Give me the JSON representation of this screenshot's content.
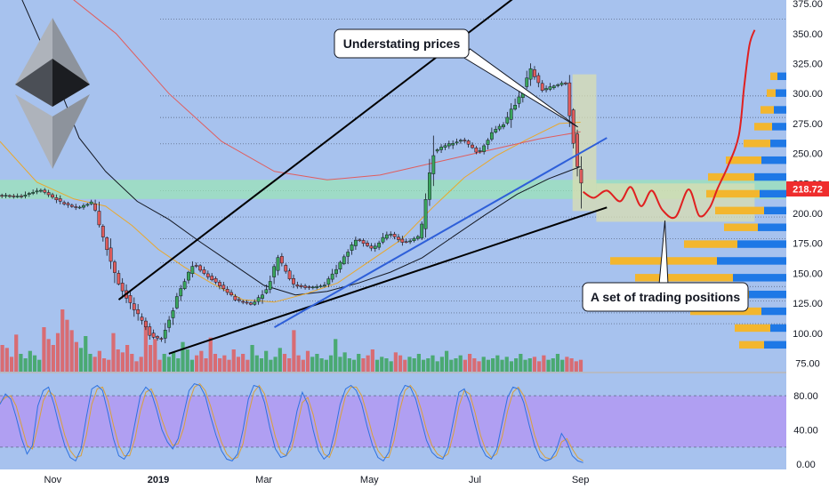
{
  "chart_data": {
    "type": "candlestick",
    "instrument_logo": "ethereum-icon",
    "current_price": "218.72",
    "price_axis": {
      "ylim": [
        68,
        378
      ],
      "ticks": [
        "375.00",
        "350.00",
        "325.00",
        "300.00",
        "275.00",
        "250.00",
        "225.00",
        "200.00",
        "175.00",
        "150.00",
        "125.00",
        "100.00",
        "75.00"
      ]
    },
    "oscillator_axis": {
      "ylim": [
        -6,
        106
      ],
      "ticks": [
        "80.00",
        "40.00",
        "0.00"
      ],
      "band": [
        20,
        80
      ]
    },
    "time_axis": {
      "ticks": [
        {
          "label": "Nov",
          "month": 1
        },
        {
          "label": "2019",
          "month": 3
        },
        {
          "label": "Mar",
          "month": 5
        },
        {
          "label": "May",
          "month": 7
        },
        {
          "label": "Jul",
          "month": 9
        },
        {
          "label": "Sep",
          "month": 11
        }
      ]
    },
    "price_path": [
      [
        0.0,
        215
      ],
      [
        0.4,
        214
      ],
      [
        0.8,
        220
      ],
      [
        1.2,
        209
      ],
      [
        1.5,
        204
      ],
      [
        1.8,
        210
      ],
      [
        2.0,
        178
      ],
      [
        2.3,
        140
      ],
      [
        2.6,
        118
      ],
      [
        2.9,
        98
      ],
      [
        3.1,
        95
      ],
      [
        3.4,
        132
      ],
      [
        3.7,
        158
      ],
      [
        3.9,
        150
      ],
      [
        4.2,
        140
      ],
      [
        4.5,
        128
      ],
      [
        4.8,
        124
      ],
      [
        5.1,
        137
      ],
      [
        5.3,
        165
      ],
      [
        5.6,
        140
      ],
      [
        5.9,
        138
      ],
      [
        6.2,
        140
      ],
      [
        6.5,
        160
      ],
      [
        6.8,
        180
      ],
      [
        7.1,
        170
      ],
      [
        7.4,
        184
      ],
      [
        7.7,
        175
      ],
      [
        8.0,
        182
      ],
      [
        8.25,
        252
      ],
      [
        8.5,
        257
      ],
      [
        8.8,
        262
      ],
      [
        9.1,
        250
      ],
      [
        9.4,
        270
      ],
      [
        9.6,
        275
      ],
      [
        9.9,
        300
      ],
      [
        10.1,
        320
      ],
      [
        10.3,
        303
      ],
      [
        10.6,
        307
      ],
      [
        10.75,
        310
      ],
      [
        10.95,
        247
      ],
      [
        11.05,
        219
      ]
    ],
    "volume_bars": [
      18,
      16,
      10,
      25,
      12,
      9,
      14,
      11,
      8,
      30,
      22,
      18,
      26,
      42,
      35,
      28,
      20,
      16,
      24,
      12,
      10,
      14,
      9,
      8,
      26,
      15,
      13,
      18,
      12,
      7,
      10,
      34,
      18,
      22,
      8,
      12,
      10,
      13,
      9,
      20,
      15,
      8,
      11,
      14,
      9,
      23,
      12,
      9,
      11,
      8,
      15,
      10,
      12,
      8,
      18,
      11,
      9,
      14,
      8,
      10,
      16,
      12,
      9,
      28,
      11,
      8,
      14,
      10,
      12,
      9,
      8,
      11,
      22,
      10,
      13,
      9,
      8,
      12,
      9,
      11,
      15,
      8,
      10,
      9,
      7,
      13,
      11,
      8,
      10,
      9,
      12,
      8,
      9,
      11,
      7,
      10,
      14,
      8,
      9,
      11,
      8,
      12,
      9,
      7,
      10,
      8,
      9,
      11,
      8,
      10,
      7,
      9,
      12,
      8,
      9,
      10,
      7,
      11,
      8,
      9,
      12,
      8,
      10,
      9,
      7,
      8
    ],
    "moving_averages": [
      {
        "color": "#131722",
        "points": [
          [
            0.0,
            420
          ],
          [
            0.9,
            330
          ],
          [
            1.5,
            263
          ],
          [
            2.0,
            235
          ],
          [
            2.6,
            210
          ],
          [
            3.2,
            195
          ],
          [
            3.8,
            176
          ],
          [
            4.4,
            158
          ],
          [
            5.0,
            140
          ],
          [
            5.6,
            132
          ],
          [
            6.2,
            135
          ],
          [
            6.8,
            142
          ],
          [
            7.4,
            151
          ],
          [
            8.0,
            163
          ],
          [
            8.6,
            181
          ],
          [
            9.2,
            199
          ],
          [
            9.8,
            216
          ],
          [
            10.4,
            229
          ],
          [
            11.0,
            239
          ]
        ]
      },
      {
        "color": "#e9a82c",
        "points": [
          [
            0.0,
            260
          ],
          [
            0.7,
            226
          ],
          [
            1.4,
            212
          ],
          [
            2.0,
            206
          ],
          [
            2.5,
            190
          ],
          [
            3.0,
            170
          ],
          [
            3.5,
            155
          ],
          [
            4.0,
            142
          ],
          [
            4.6,
            128
          ],
          [
            5.2,
            126
          ],
          [
            5.8,
            133
          ],
          [
            6.4,
            142
          ],
          [
            7.0,
            160
          ],
          [
            7.6,
            178
          ],
          [
            8.2,
            205
          ],
          [
            8.8,
            230
          ],
          [
            9.4,
            248
          ],
          [
            10.0,
            262
          ],
          [
            10.6,
            275
          ],
          [
            11.0,
            276
          ]
        ]
      },
      {
        "color": "#e05d5d",
        "points": [
          [
            0.0,
            405
          ],
          [
            1.2,
            385
          ],
          [
            2.2,
            350
          ],
          [
            3.2,
            300
          ],
          [
            4.2,
            260
          ],
          [
            5.2,
            235
          ],
          [
            6.2,
            228
          ],
          [
            7.2,
            232
          ],
          [
            8.2,
            242
          ],
          [
            9.2,
            252
          ],
          [
            10.2,
            262
          ],
          [
            11.0,
            268
          ]
        ]
      }
    ],
    "trendlines": [
      {
        "color": "#000000",
        "from": [
          2.25,
          128
        ],
        "to": [
          11.0,
          422
        ]
      },
      {
        "color": "#000000",
        "from": [
          3.2,
          83
        ],
        "to": [
          11.5,
          205
        ]
      },
      {
        "color": "#2e5fd9",
        "from": [
          5.2,
          105
        ],
        "to": [
          11.5,
          263
        ]
      }
    ],
    "projection_path": [
      [
        11.05,
        218
      ],
      [
        11.25,
        213
      ],
      [
        11.5,
        219
      ],
      [
        11.75,
        210
      ],
      [
        11.95,
        222
      ],
      [
        12.15,
        206
      ],
      [
        12.35,
        219
      ],
      [
        12.55,
        203
      ],
      [
        12.8,
        197
      ],
      [
        13.05,
        220
      ],
      [
        13.25,
        198
      ],
      [
        13.45,
        205
      ],
      [
        13.6,
        221
      ],
      [
        13.8,
        240
      ],
      [
        14.0,
        265
      ],
      [
        14.1,
        305
      ],
      [
        14.2,
        340
      ],
      [
        14.3,
        353
      ]
    ],
    "horizontal_levels": [
      362,
      298,
      280,
      258,
      219,
      197,
      179,
      159,
      139,
      127,
      117,
      108
    ],
    "support_zone": [
      212,
      228
    ],
    "consolidation_box": {
      "x": [
        10.85,
        11.3
      ],
      "y": [
        202,
        316
      ]
    },
    "trading_zone": {
      "x": [
        11.3,
        14.3
      ],
      "y": [
        193,
        225
      ]
    },
    "volume_profile": [
      {
        "price": 90,
        "blue": 25,
        "yellow": 28
      },
      {
        "price": 104,
        "blue": 18,
        "yellow": 40
      },
      {
        "price": 118,
        "blue": 28,
        "yellow": 80
      },
      {
        "price": 132,
        "blue": 42,
        "yellow": 95
      },
      {
        "price": 146,
        "blue": 60,
        "yellow": 110
      },
      {
        "price": 160,
        "blue": 78,
        "yellow": 120
      },
      {
        "price": 174,
        "blue": 55,
        "yellow": 60
      },
      {
        "price": 188,
        "blue": 32,
        "yellow": 38
      },
      {
        "price": 202,
        "blue": 25,
        "yellow": 55
      },
      {
        "price": 216,
        "blue": 30,
        "yellow": 60
      },
      {
        "price": 230,
        "blue": 36,
        "yellow": 52
      },
      {
        "price": 244,
        "blue": 28,
        "yellow": 40
      },
      {
        "price": 258,
        "blue": 18,
        "yellow": 30
      },
      {
        "price": 272,
        "blue": 16,
        "yellow": 20
      },
      {
        "price": 286,
        "blue": 14,
        "yellow": 15
      },
      {
        "price": 300,
        "blue": 12,
        "yellow": 10
      },
      {
        "price": 314,
        "blue": 10,
        "yellow": 8
      }
    ],
    "oscillator": {
      "k": [
        70,
        82,
        76,
        55,
        30,
        12,
        22,
        68,
        86,
        90,
        70,
        44,
        22,
        8,
        4,
        18,
        55,
        88,
        92,
        86,
        60,
        30,
        10,
        6,
        16,
        48,
        80,
        90,
        84,
        64,
        40,
        26,
        18,
        30,
        58,
        86,
        94,
        92,
        80,
        56,
        34,
        16,
        6,
        4,
        12,
        40,
        76,
        92,
        90,
        72,
        42,
        18,
        8,
        10,
        28,
        62,
        84,
        70,
        40,
        16,
        6,
        12,
        38,
        70,
        88,
        92,
        86,
        70,
        44,
        22,
        8,
        4,
        14,
        44,
        80,
        92,
        90,
        76,
        52,
        28,
        14,
        8,
        6,
        20,
        52,
        84,
        88,
        72,
        46,
        22,
        10,
        6,
        18,
        48,
        78,
        90,
        88,
        72,
        46,
        22,
        8,
        4,
        6,
        16,
        36,
        26,
        10,
        4,
        2
      ],
      "d": [
        72,
        78,
        80,
        68,
        45,
        22,
        18,
        44,
        74,
        86,
        80,
        58,
        34,
        16,
        8,
        10,
        34,
        70,
        88,
        90,
        74,
        46,
        22,
        10,
        10,
        30,
        62,
        84,
        88,
        74,
        52,
        34,
        22,
        24,
        42,
        72,
        90,
        94,
        86,
        68,
        46,
        26,
        12,
        6,
        8,
        24,
        58,
        84,
        92,
        82,
        58,
        32,
        14,
        10,
        18,
        44,
        72,
        78,
        58,
        30,
        12,
        8,
        24,
        54,
        80,
        90,
        90,
        80,
        58,
        34,
        16,
        8,
        8,
        28,
        62,
        86,
        92,
        84,
        64,
        40,
        22,
        12,
        8,
        12,
        36,
        68,
        86,
        82,
        60,
        34,
        16,
        8,
        12,
        32,
        62,
        84,
        90,
        80,
        60,
        34,
        16,
        8,
        6,
        10,
        26,
        30,
        18,
        8,
        4
      ]
    },
    "annotations": [
      {
        "text": "Understating prices",
        "anchor": "top-center",
        "points_to": [
          [
            10.3,
            308
          ],
          [
            10.95,
            272
          ]
        ]
      },
      {
        "text": "A set of trading positions",
        "anchor": "bottom-right",
        "points_to": [
          [
            12.6,
            194
          ]
        ]
      }
    ]
  },
  "colors": {
    "pane_bg": "#a7c2ee",
    "osc_band": "#b396f2",
    "axis_bg": "#ffffff",
    "up": "#3aa55c",
    "down": "#e05d5d",
    "projection": "#e02020",
    "price_tag": "#ef2d2d",
    "support_zone": "#9be3b8",
    "box": "#d9ddb0",
    "vp_blue": "#1e78e6",
    "vp_yellow": "#f3b62e",
    "osc_k": "#2e72e0",
    "osc_d": "#d9a03a",
    "grid": "#4e5a72"
  }
}
